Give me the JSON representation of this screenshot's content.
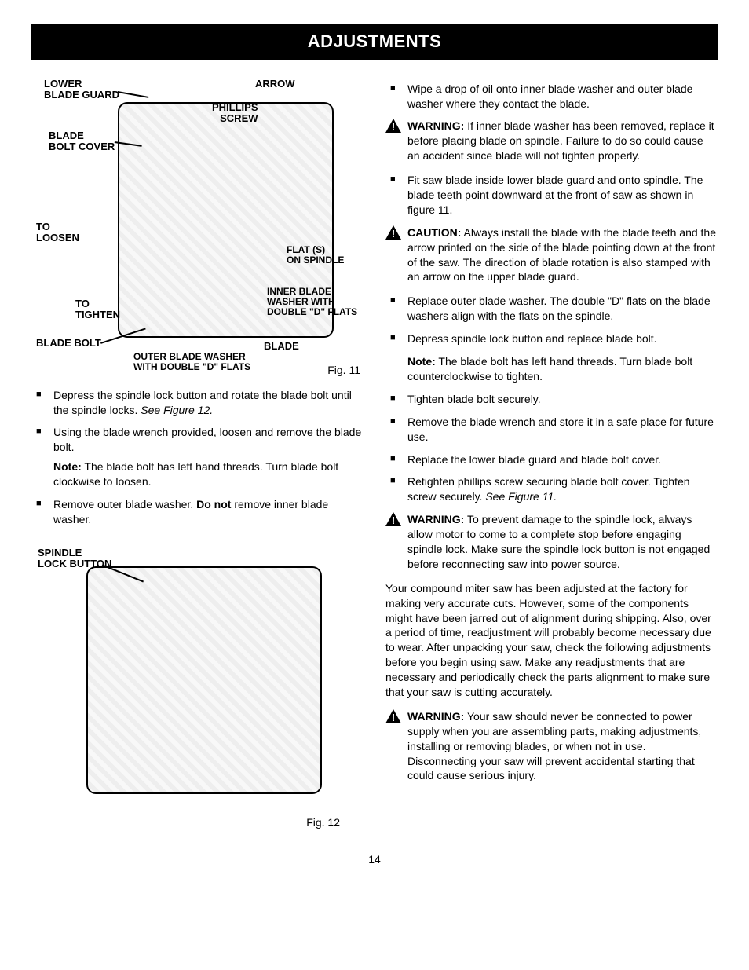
{
  "title": "ADJUSTMENTS",
  "page_number": "14",
  "fig11": {
    "caption": "Fig. 11",
    "labels": {
      "lower_blade_guard": "LOWER\nBLADE GUARD",
      "arrow": "ARROW",
      "phillips_screw": "PHILLIPS\nSCREW",
      "blade_bolt_cover": "BLADE\nBOLT COVER",
      "to_loosen": "TO\nLOOSEN",
      "to_tighten": "TO\nTIGHTEN",
      "flat_s_on_spindle": "FLAT (S)\nON SPINDLE",
      "inner_blade_washer": "INNER BLADE\nWASHER WITH\nDOUBLE \"D\" FLATS",
      "blade_bolt": "BLADE BOLT",
      "blade": "BLADE",
      "outer_blade_washer": "OUTER BLADE WASHER\nWITH DOUBLE \"D\" FLATS"
    }
  },
  "fig12": {
    "caption": "Fig. 12",
    "labels": {
      "spindle_lock_button": "SPINDLE\nLOCK BUTTON"
    }
  },
  "left_bullets": [
    {
      "text": "Depress the spindle lock button and rotate the blade bolt until the spindle locks. ",
      "trail_italic": "See Figure 12."
    },
    {
      "text": "Using the blade wrench provided, loosen and remove the blade bolt."
    },
    {
      "note_bold": "Note:",
      "note_text": " The blade bolt has left hand threads. Turn blade bolt clockwise to loosen."
    },
    {
      "text": "Remove outer blade washer. ",
      "mid_bold": "Do not",
      "after_bold": " remove inner blade washer."
    }
  ],
  "right": [
    {
      "type": "bullet",
      "text": "Wipe a drop of oil onto inner blade washer and outer blade washer where they contact the blade."
    },
    {
      "type": "alert",
      "lead": "WARNING:",
      "text": " If inner blade washer has been removed, replace it before placing blade on spindle. Failure to do so could cause an accident since blade will not tighten properly."
    },
    {
      "type": "bullet",
      "text": "Fit saw blade inside lower blade guard and onto spindle. The blade teeth point downward at the front of saw as shown in figure 11."
    },
    {
      "type": "alert",
      "lead": "CAUTION:",
      "text": " Always install the blade with the blade teeth and the arrow printed on the side of the blade pointing down at the front of the saw. The direction of blade rotation is also stamped with an arrow on the upper blade guard."
    },
    {
      "type": "bullet",
      "text": "Replace outer blade washer. The double \"D\" flats on the blade washers align with the flats on the spindle."
    },
    {
      "type": "bullet",
      "text": "Depress spindle lock button and replace blade bolt."
    },
    {
      "type": "note",
      "lead": "Note:",
      "text": " The blade bolt has left hand threads. Turn blade bolt counterclockwise to tighten."
    },
    {
      "type": "bullet",
      "text": "Tighten blade bolt securely."
    },
    {
      "type": "bullet",
      "text": "Remove the blade wrench and store it in a safe place for future use."
    },
    {
      "type": "bullet",
      "text": "Replace the lower blade guard and blade bolt cover."
    },
    {
      "type": "bullet",
      "text": "Retighten phillips screw securing blade bolt cover. Tighten screw securely. ",
      "trail_italic": "See Figure 11."
    },
    {
      "type": "alert",
      "lead": "WARNING:",
      "text": " To prevent damage to the spindle lock, always allow motor to come to a complete stop before engaging spindle lock. Make sure the spindle lock button is not engaged before reconnecting saw into power source."
    },
    {
      "type": "para",
      "text": "Your compound miter saw has been adjusted at the factory for making very accurate cuts. However, some of the components might have been jarred out of alignment during shipping. Also, over a period of time, readjustment will probably become necessary due to wear. After unpacking your saw, check the following adjustments before you begin using saw. Make any readjustments that are necessary and periodically check the parts alignment to make sure that your saw is cutting accurately."
    },
    {
      "type": "alert",
      "lead": "WARNING:",
      "text": " Your saw should never be connected to power supply when you are assembling parts, making adjustments, installing or removing blades, or when not in use. Disconnecting your saw will prevent accidental starting that could cause serious injury."
    }
  ]
}
